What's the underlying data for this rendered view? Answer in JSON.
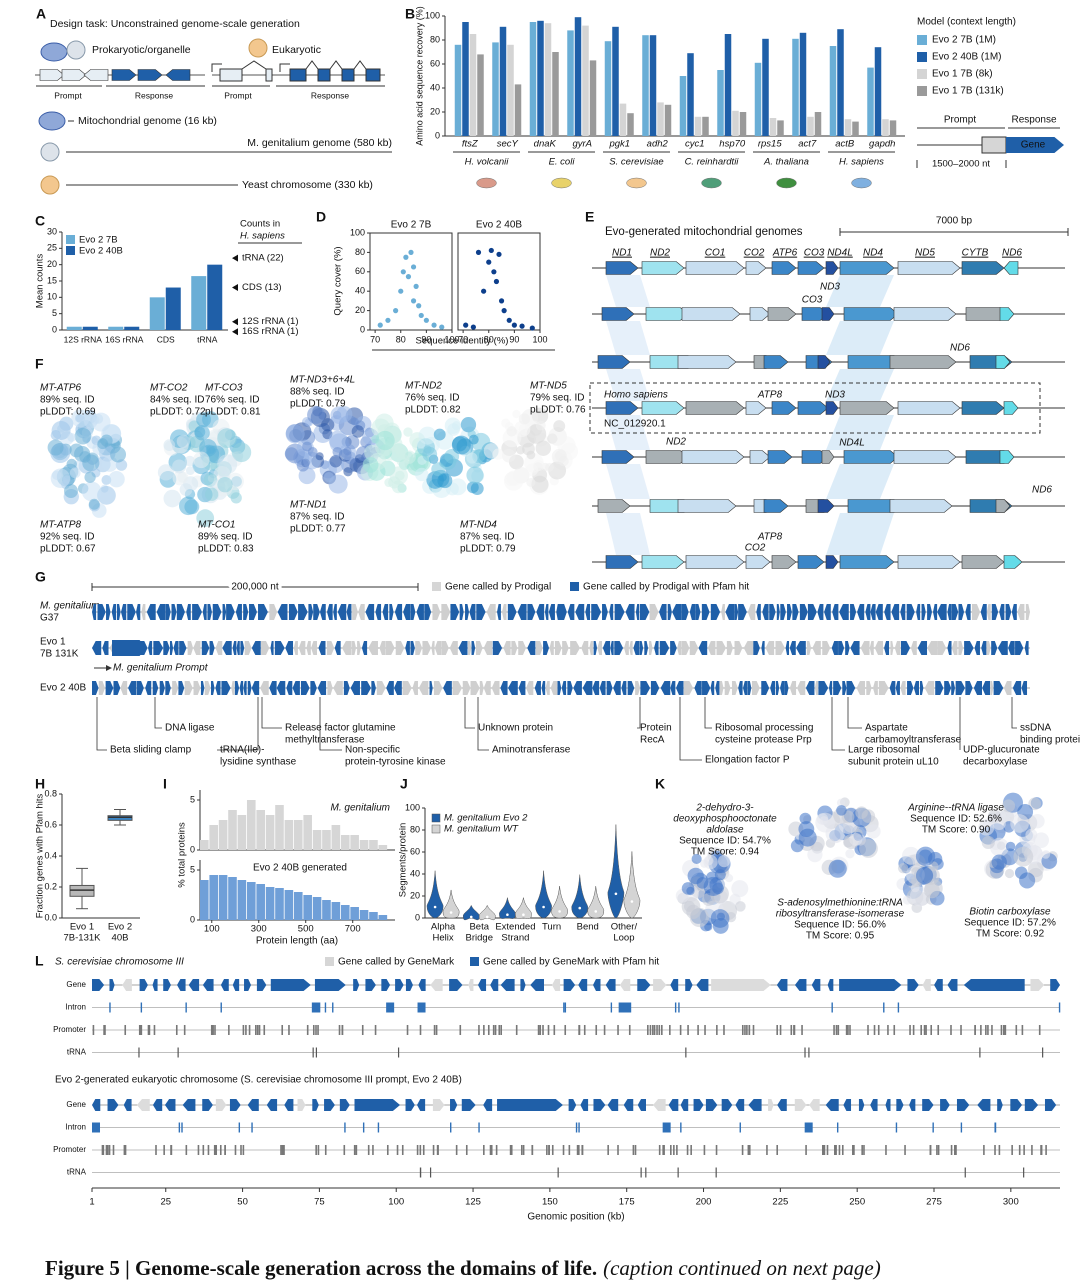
{
  "caption": {
    "title": "Figure 5 | Genome-scale generation across the domains of life.",
    "note": "(caption continued on next page)"
  },
  "panel_a": {
    "label": "A",
    "task": "Design task: Unconstrained genome-scale generation",
    "prokaryotic": "Prokaryotic/organelle",
    "eukaryotic": "Eukaryotic",
    "prompt": "Prompt",
    "response": "Response",
    "mito": "Mitochondrial genome (16 kb)",
    "mgen": "M. genitalium genome (580 kb)",
    "yeast": "Yeast chromosome (330 kb)"
  },
  "panel_b": {
    "label": "B",
    "chart": {
      "type": "bar",
      "ylabel": "Amino acid sequence recovery (%)",
      "ylim": [
        0,
        100
      ],
      "yticks": [
        0,
        20,
        40,
        60,
        80,
        100
      ],
      "categories": [
        "ftsZ",
        "secY",
        "dnaK",
        "gyrA",
        "pgk1",
        "adh2",
        "cyc1",
        "hsp70",
        "rps15",
        "act7",
        "actB",
        "gapdh"
      ],
      "groups": [
        "H. volcanii",
        "E. coli",
        "S. cerevisiae",
        "C. reinhardtii",
        "A. thaliana",
        "H. sapiens"
      ],
      "legend_title": "Model (context length)",
      "series": [
        {
          "name": "Evo 2 7B (1M)",
          "color": "#6aaed6",
          "values": [
            76,
            78,
            95,
            88,
            79,
            84,
            50,
            55,
            61,
            81,
            75,
            57
          ]
        },
        {
          "name": "Evo 2 40B (1M)",
          "color": "#1f5fa8",
          "values": [
            95,
            91,
            96,
            99,
            91,
            84,
            69,
            85,
            81,
            86,
            89,
            74
          ]
        },
        {
          "name": "Evo 1 7B (8k)",
          "color": "#d4d4d4",
          "values": [
            85,
            76,
            94,
            92,
            27,
            28,
            16,
            21,
            15,
            16,
            14,
            14
          ]
        },
        {
          "name": "Evo 1 7B (131k)",
          "color": "#9a9a9a",
          "values": [
            68,
            43,
            70,
            63,
            19,
            26,
            16,
            20,
            13,
            20,
            12,
            13
          ]
        }
      ]
    },
    "schematic": {
      "prompt": "Prompt",
      "response": "Response",
      "gene": "Gene",
      "length": "1500–2000 nt"
    }
  },
  "panel_c": {
    "label": "C",
    "chart": {
      "type": "bar",
      "ylabel": "Mean counts",
      "ylim": [
        0,
        30
      ],
      "yticks": [
        0,
        5,
        10,
        15,
        20,
        25,
        30
      ],
      "categories": [
        "12S rRNA",
        "16S rRNA",
        "CDS",
        "tRNA"
      ],
      "series": [
        {
          "name": "Evo 2 7B",
          "color": "#6aaed6",
          "values": [
            1,
            1,
            10,
            16.5
          ]
        },
        {
          "name": "Evo 2 40B",
          "color": "#1f5fa8",
          "values": [
            1,
            1,
            13,
            20
          ]
        }
      ],
      "reference_title": [
        "Counts in",
        "H. sapiens"
      ],
      "references": [
        {
          "label": "tRNA (22)",
          "value": 22
        },
        {
          "label": "CDS (13)",
          "value": 13
        },
        {
          "label": "12S rRNA (1)",
          "value": 1
        },
        {
          "label": "16S rRNA (1)",
          "value": 1
        }
      ]
    }
  },
  "panel_d": {
    "label": "D",
    "chart": {
      "type": "scatter",
      "ylabel": "Query cover (%)",
      "xlabel": "Sequence identity (%)",
      "xlim": [
        68,
        100
      ],
      "xticks": [
        70,
        80,
        90,
        100
      ],
      "ylim": [
        0,
        100
      ],
      "yticks": [
        0,
        20,
        40,
        60,
        80,
        100
      ],
      "panels": [
        {
          "name": "Evo 2 7B",
          "color": "#6aaed6",
          "x": [
            72,
            75,
            78,
            80,
            81,
            82,
            83,
            84,
            85,
            85,
            86,
            87,
            88,
            90,
            93,
            96
          ],
          "y": [
            5,
            10,
            20,
            40,
            60,
            75,
            55,
            80,
            30,
            65,
            45,
            25,
            15,
            10,
            5,
            3
          ]
        },
        {
          "name": "Evo 2 40B",
          "color": "#0d3f8c",
          "x": [
            71,
            74,
            76,
            78,
            80,
            81,
            82,
            83,
            84,
            85,
            86,
            88,
            90,
            93,
            97
          ],
          "y": [
            5,
            3,
            80,
            40,
            70,
            82,
            60,
            50,
            78,
            30,
            20,
            10,
            5,
            4,
            2
          ]
        }
      ]
    }
  },
  "panel_e": {
    "label": "E",
    "title": "Evo-generated mitochondrial genomes",
    "scale": "7000 bp",
    "genes_top": [
      "ND1",
      "ND2",
      "CO1",
      "CO2",
      "ATP6",
      "CO3",
      "ND4L",
      "ND4",
      "ND5",
      "CYTB",
      "ND6"
    ],
    "other_labels": [
      "ND3",
      "CO3",
      "ND6",
      "ATP8",
      "ND3",
      "ND2",
      "ND4L",
      "ND6",
      "ATP8",
      "CO2"
    ],
    "reference": "Homo sapiens",
    "accession": "NC_012920.1"
  },
  "panel_f": {
    "label": "F",
    "structures": [
      {
        "name": "MT-ATP6",
        "id": "89% seq. ID",
        "plddt": "pLDDT: 0.69"
      },
      {
        "name": "MT-ATP8",
        "id": "92% seq. ID",
        "plddt": "pLDDT: 0.67"
      },
      {
        "name": "MT-CO2",
        "id": "84% seq. ID",
        "plddt": "pLDDT: 0.72"
      },
      {
        "name": "MT-CO3",
        "id": "76% seq. ID",
        "plddt": "pLDDT: 0.81"
      },
      {
        "name": "MT-CO1",
        "id": "89% seq. ID",
        "plddt": "pLDDT: 0.83"
      },
      {
        "name": "MT-ND3+6+4L",
        "id": "88% seq. ID",
        "plddt": "pLDDT: 0.79"
      },
      {
        "name": "MT-ND2",
        "id": "76% seq. ID",
        "plddt": "pLDDT: 0.82"
      },
      {
        "name": "MT-ND5",
        "id": "79% seq. ID",
        "plddt": "pLDDT: 0.76"
      },
      {
        "name": "MT-ND1",
        "id": "87% seq. ID",
        "plddt": "pLDDT: 0.77"
      },
      {
        "name": "MT-ND4",
        "id": "87% seq. ID",
        "plddt": "pLDDT: 0.79"
      }
    ]
  },
  "panel_g": {
    "label": "G",
    "scale": "200,000 nt",
    "legend": [
      "Gene called by Prodigal",
      "Gene called by Prodigal with Pfam hit"
    ],
    "tracks": [
      [
        "M. genitalium",
        "G37"
      ],
      [
        "Evo 1",
        "7B 131K"
      ],
      [
        "Evo 2 40B"
      ]
    ],
    "prompt": "M. genitalium Prompt",
    "annotations": [
      [
        "Beta sliding clamp"
      ],
      [
        "DNA ligase"
      ],
      [
        "tRNA(Ile)-",
        "lysidine synthase"
      ],
      [
        "Release factor glutamine",
        "methyltransferase"
      ],
      [
        "Non-specific",
        "protein-tyrosine kinase"
      ],
      [
        "Unknown protein"
      ],
      [
        "Aminotransferase"
      ],
      [
        "Protein",
        "RecA"
      ],
      [
        "Elongation factor P"
      ],
      [
        "Ribosomal processing",
        "cysteine protease Prp"
      ],
      [
        "Large ribosomal",
        "subunit protein uL10"
      ],
      [
        "Aspartate",
        "carbamoyltransferase"
      ],
      [
        "UDP-glucuronate",
        "decarboxylase"
      ],
      [
        "ssDNA",
        "binding protein"
      ]
    ]
  },
  "panel_h": {
    "label": "H",
    "chart": {
      "type": "box",
      "ylabel": "Fraction genes with Pfam hits",
      "ylim": [
        0,
        0.8
      ],
      "yticks": [
        {
          "value": 0,
          "label": "0.0"
        },
        0.2,
        0.4,
        0.6,
        0.8
      ],
      "categories": [
        [
          "Evo 1",
          "7B-131K"
        ],
        [
          "Evo 2",
          "40B"
        ]
      ],
      "colors": [
        "#b8b8b8",
        "#3a86c8"
      ],
      "boxes": [
        {
          "min": 0.06,
          "q1": 0.14,
          "median": 0.18,
          "q3": 0.21,
          "max": 0.32
        },
        {
          "min": 0.6,
          "q1": 0.63,
          "median": 0.65,
          "q3": 0.66,
          "max": 0.7
        }
      ]
    }
  },
  "panel_i": {
    "label": "I",
    "chart": {
      "type": "histogram",
      "ylabel": "% total proteins",
      "xlabel": "Protein length (aa)",
      "xlim": [
        50,
        880
      ],
      "xticks": [
        100,
        300,
        500,
        700
      ],
      "bins": [
        50,
        90,
        130,
        170,
        210,
        250,
        290,
        330,
        370,
        410,
        450,
        490,
        530,
        570,
        610,
        650,
        690,
        730,
        770,
        810,
        850
      ],
      "panels": [
        {
          "name": "M. genitalium",
          "color": "#d6d6d6",
          "ylim": [
            0,
            6
          ],
          "yticks": [
            0,
            5
          ],
          "counts": [
            1,
            2.5,
            3,
            4,
            3.5,
            5,
            4,
            3.5,
            4.5,
            3,
            3,
            3.5,
            2,
            2,
            2.5,
            1.5,
            1.5,
            1,
            1,
            0.5
          ]
        },
        {
          "name": "Evo 2 40B generated",
          "color": "#6f9fd8",
          "ylim": [
            0,
            6
          ],
          "yticks": [
            0,
            5
          ],
          "counts": [
            4,
            4.5,
            4.5,
            4.3,
            4,
            3.8,
            3.6,
            3.3,
            3.2,
            3,
            2.8,
            2.5,
            2.3,
            2,
            1.8,
            1.5,
            1.3,
            1,
            0.8,
            0.5
          ]
        }
      ]
    }
  },
  "panel_j": {
    "label": "J",
    "chart": {
      "type": "violin",
      "ylabel": "Segments/protein",
      "ylim": [
        0,
        100
      ],
      "yticks": [
        0,
        20,
        40,
        60,
        80,
        100
      ],
      "categories": [
        [
          "Alpha",
          "Helix"
        ],
        [
          "Beta",
          "Bridge"
        ],
        [
          "Extended",
          "Strand"
        ],
        [
          "Turn"
        ],
        [
          "Bend"
        ],
        [
          "Other/",
          "Loop"
        ]
      ],
      "series": [
        {
          "name": "M. genitalium Evo 2",
          "color": "#1f5fa8",
          "values": [
            10,
            1,
            3,
            10,
            9,
            22
          ]
        },
        {
          "name": "M. genitalium WT",
          "color": "#d4d4d4",
          "values": [
            5,
            1,
            3,
            6,
            6,
            15
          ]
        }
      ]
    }
  },
  "panel_k": {
    "label": "K",
    "proteins": [
      {
        "name": [
          "2-dehydro-3-",
          "deoxyphosphooctonate",
          "aldolase"
        ],
        "seq": "Sequence ID: 54.7%",
        "tm": "TM Score: 0.94"
      },
      {
        "name": [
          "Arginine--tRNA ligase"
        ],
        "seq": "Sequence ID: 52.6%",
        "tm": "TM Score: 0.90"
      },
      {
        "name": [
          "S-adenosylmethionine:tRNA",
          "ribosyltransferase-isomerase"
        ],
        "seq": "Sequence ID: 56.0%",
        "tm": "TM Score: 0.95"
      },
      {
        "name": [
          "Biotin carboxylase"
        ],
        "seq": "Sequence ID: 57.2%",
        "tm": "TM Score: 0.92"
      }
    ]
  },
  "panel_l": {
    "label": "L",
    "title": "S. cerevisiae chromosome III",
    "legend": [
      "Gene called by GeneMark",
      "Gene called by GeneMark with Pfam hit"
    ],
    "tracks": [
      "Gene",
      "Intron",
      "Promoter",
      "tRNA"
    ],
    "title2": "Evo 2-generated eukaryotic chromosome (S. cerevisiae chromosome III prompt, Evo 2 40B)",
    "xlabel": "Genomic position (kb)",
    "xlim": [
      1,
      316
    ],
    "xticks": [
      1,
      25,
      50,
      75,
      100,
      125,
      150,
      175,
      200,
      225,
      250,
      275,
      300
    ]
  }
}
